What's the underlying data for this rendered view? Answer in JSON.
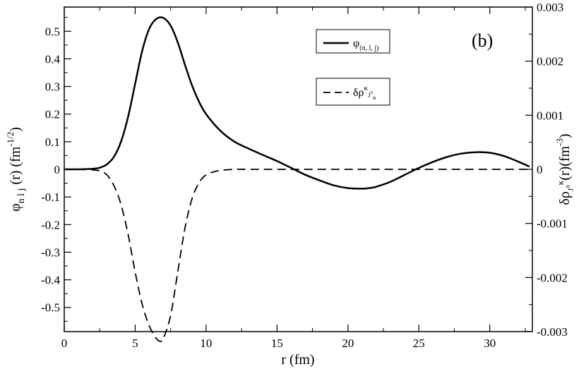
{
  "chart_data": {
    "type": "line",
    "panel_label": "(b)",
    "x_axis": {
      "label": "r (fm)",
      "range": [
        0,
        33
      ],
      "ticks": [
        0,
        5,
        10,
        15,
        20,
        25,
        30
      ],
      "tick_labels": [
        "0",
        "5",
        "10",
        "15",
        "20",
        "25",
        "30"
      ]
    },
    "y_left": {
      "label_main": "φ",
      "label_sub": "n l j",
      "label_tail": " (r) (fm",
      "label_sup": "-1/2",
      "label_close": ")",
      "range": [
        -0.5875,
        0.5875
      ],
      "ticks": [
        -0.5,
        -0.4,
        -0.3,
        -0.2,
        -0.1,
        0,
        0.1,
        0.2,
        0.3,
        0.4,
        0.5
      ],
      "tick_labels": [
        "-0.5",
        "-0.4",
        "-0.3",
        "-0.2",
        "-0.1",
        "0",
        "0.1",
        "0.2",
        "0.3",
        "0.4",
        "0.5"
      ]
    },
    "y_right": {
      "label_main": "δρ",
      "label_sub": "J",
      "label_subsup": "π",
      "label_sup": "κ",
      "label_tail": "(r)(fm",
      "label_sup2": "-3",
      "label_close": ")",
      "range": [
        -0.003,
        0.003
      ],
      "ticks": [
        -0.003,
        -0.002,
        -0.001,
        0,
        0.001,
        0.002,
        0.003
      ],
      "tick_labels": [
        "-0.003",
        "-0.002",
        "-0.001",
        "0",
        "0.001",
        "0.002",
        "0.003"
      ]
    },
    "legend": {
      "placement": "top-right",
      "entries": [
        {
          "main": "φ",
          "sub": "(n, l, j)",
          "style": "solid"
        },
        {
          "main": "δρ",
          "sup": "κ",
          "sup_sub": "J",
          "sup_sub_sup": "π",
          "sup_sub_sub": "n",
          "style": "dashed"
        }
      ]
    },
    "series": [
      {
        "style": "solid",
        "axis": "left",
        "x": [
          0,
          1,
          2,
          2.5,
          3,
          3.5,
          4,
          4.5,
          5,
          5.5,
          6,
          6.5,
          7,
          7.5,
          8,
          8.5,
          9,
          9.5,
          10,
          11,
          12,
          13,
          14,
          15,
          16,
          17,
          18,
          19,
          20,
          21,
          21.5,
          22,
          23,
          24,
          25,
          26,
          27,
          28,
          29,
          30,
          31,
          32,
          32.8
        ],
        "y": [
          0,
          0,
          0.002,
          0.006,
          0.018,
          0.045,
          0.1,
          0.19,
          0.31,
          0.43,
          0.51,
          0.545,
          0.548,
          0.52,
          0.46,
          0.38,
          0.305,
          0.245,
          0.2,
          0.14,
          0.1,
          0.075,
          0.052,
          0.03,
          0.005,
          -0.02,
          -0.04,
          -0.058,
          -0.068,
          -0.07,
          -0.068,
          -0.063,
          -0.045,
          -0.02,
          0.005,
          0.027,
          0.045,
          0.057,
          0.062,
          0.06,
          0.048,
          0.028,
          0.01
        ]
      },
      {
        "style": "dashed",
        "axis": "right",
        "x": [
          0,
          1,
          2,
          2.5,
          3,
          3.5,
          4,
          4.5,
          5,
          5.5,
          6,
          6.5,
          6.8,
          7,
          7.5,
          8,
          8.5,
          9,
          9.5,
          10,
          10.5,
          11,
          12,
          13,
          14,
          16,
          18,
          20,
          25,
          30,
          33
        ],
        "y": [
          0,
          0,
          -1e-05,
          -3e-05,
          -0.0001,
          -0.0003,
          -0.00065,
          -0.0012,
          -0.0019,
          -0.0025,
          -0.0029,
          -0.00313,
          -0.00318,
          -0.00312,
          -0.0027,
          -0.0019,
          -0.0011,
          -0.00055,
          -0.00025,
          -0.0001,
          -5e-05,
          -2e-05,
          0,
          0,
          0,
          0,
          0,
          0,
          0,
          0,
          0
        ]
      }
    ]
  }
}
